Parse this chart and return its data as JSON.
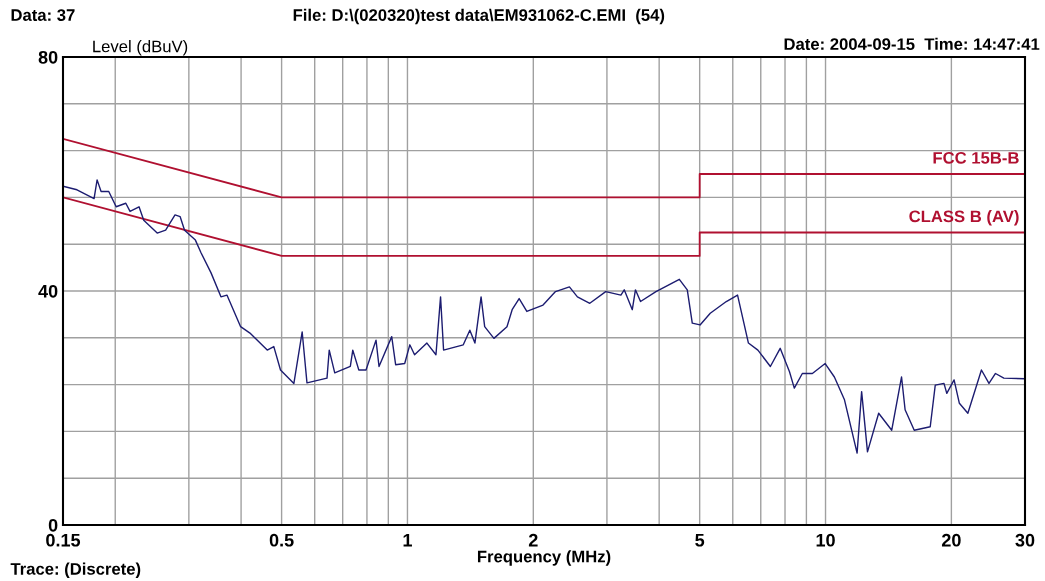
{
  "chart_data": {
    "type": "line",
    "xlabel": "Frequency (MHz)",
    "ylabel": "Level (dBuV)",
    "annotations": [
      "Data: 37",
      "File: D:\\(020320)test data\\EM931062-C.EMI  (54)",
      "Date: 2004-09-15  Time: 14:47:41",
      "Trace: (Discrete)"
    ],
    "log": "x",
    "grid": true,
    "legend": false,
    "marker": "none",
    "line_style": "solid",
    "xlim": [
      0.15,
      30
    ],
    "ylim": [
      0,
      80
    ],
    "xticks": [
      0.15,
      {
        "value": 0.2,
        "label": null
      },
      {
        "value": 0.3,
        "label": null
      },
      {
        "value": 0.4,
        "label": null
      },
      0.5,
      {
        "value": 0.6,
        "label": null
      },
      {
        "value": 0.7,
        "label": null
      },
      {
        "value": 0.8,
        "label": null
      },
      {
        "value": 0.9,
        "label": null
      },
      1,
      2,
      {
        "value": 3,
        "label": null
      },
      {
        "value": 4,
        "label": null
      },
      5,
      {
        "value": 6,
        "label": null
      },
      {
        "value": 7,
        "label": null
      },
      {
        "value": 8,
        "label": null
      },
      {
        "value": 9,
        "label": null
      },
      10,
      20,
      30
    ],
    "yticks": [
      0,
      {
        "value": 8,
        "label": null
      },
      {
        "value": 16,
        "label": null
      },
      {
        "value": 24,
        "label": null
      },
      {
        "value": 32,
        "label": null
      },
      40,
      {
        "value": 48,
        "label": null
      },
      {
        "value": 56,
        "label": null
      },
      {
        "value": 64,
        "label": null
      },
      {
        "value": 72,
        "label": null
      },
      80
    ],
    "series": [
      {
        "name": "FCC 15B-B",
        "color": "#b01030",
        "x": [
          0.15,
          0.5,
          5,
          5,
          30
        ],
        "values": [
          66,
          56,
          56,
          60,
          60
        ]
      },
      {
        "name": "CLASS B (AV)",
        "color": "#b01030",
        "x": [
          0.15,
          0.5,
          5,
          5,
          30
        ],
        "values": [
          56,
          46,
          46,
          50,
          50
        ]
      },
      {
        "color": "#1c1c70",
        "x": [
          0.15,
          0.162,
          0.178,
          0.181,
          0.185,
          0.193,
          0.201,
          0.212,
          0.217,
          0.228,
          0.234,
          0.252,
          0.264,
          0.278,
          0.286,
          0.293,
          0.311,
          0.321,
          0.339,
          0.358,
          0.37,
          0.399,
          0.42,
          0.462,
          0.479,
          0.497,
          0.535,
          0.56,
          0.575,
          0.642,
          0.65,
          0.67,
          0.73,
          0.74,
          0.765,
          0.796,
          0.841,
          0.855,
          0.917,
          0.937,
          0.985,
          1.013,
          1.04,
          1.113,
          1.17,
          1.2,
          1.22,
          1.36,
          1.41,
          1.45,
          1.5,
          1.53,
          1.61,
          1.73,
          1.78,
          1.85,
          1.93,
          2.11,
          2.26,
          2.44,
          2.55,
          2.73,
          2.98,
          3.24,
          3.3,
          3.45,
          3.51,
          3.61,
          3.93,
          4.47,
          4.67,
          4.8,
          5.01,
          5.3,
          5.79,
          6.16,
          6.54,
          6.89,
          7.38,
          7.79,
          8.2,
          8.42,
          8.8,
          9.3,
          9.98,
          10.5,
          11.1,
          11.9,
          12.2,
          12.6,
          13.4,
          14.4,
          15.2,
          15.5,
          16.3,
          17.8,
          18.3,
          19.2,
          19.5,
          20.3,
          20.9,
          21.9,
          23.6,
          24.6,
          25.5,
          26.7,
          30
        ],
        "values": [
          57.9,
          57.3,
          55.8,
          59,
          57,
          57,
          54.4,
          55,
          53.6,
          54.4,
          52.1,
          49.9,
          50.4,
          53,
          52.7,
          50.4,
          48.7,
          46.5,
          43.1,
          39,
          39.3,
          33.9,
          32.8,
          29.9,
          30.5,
          26.5,
          24.2,
          33,
          24.3,
          25.1,
          29.9,
          26,
          27.1,
          29.9,
          26.5,
          26.5,
          31.6,
          27.1,
          32.2,
          27.4,
          27.6,
          30.8,
          29.1,
          31.1,
          29.1,
          39,
          29.9,
          30.8,
          33.3,
          31.1,
          39,
          33.9,
          31.9,
          33.9,
          36.8,
          38.7,
          36.5,
          37.6,
          39.9,
          40.7,
          39,
          37.9,
          39.9,
          39.3,
          40.2,
          36.8,
          40.2,
          38.2,
          39.9,
          42,
          40.2,
          34.5,
          34.2,
          36.2,
          38.2,
          39.3,
          31.1,
          29.9,
          27.1,
          30.2,
          26.2,
          23.4,
          25.9,
          25.9,
          27.6,
          25.3,
          21.4,
          12.3,
          22.8,
          12.5,
          19.1,
          16.2,
          25.3,
          19.7,
          16.2,
          16.8,
          23.9,
          24.2,
          22.5,
          24.8,
          20.8,
          19.1,
          26.5,
          24.2,
          25.9,
          25.1,
          25
        ]
      }
    ]
  }
}
